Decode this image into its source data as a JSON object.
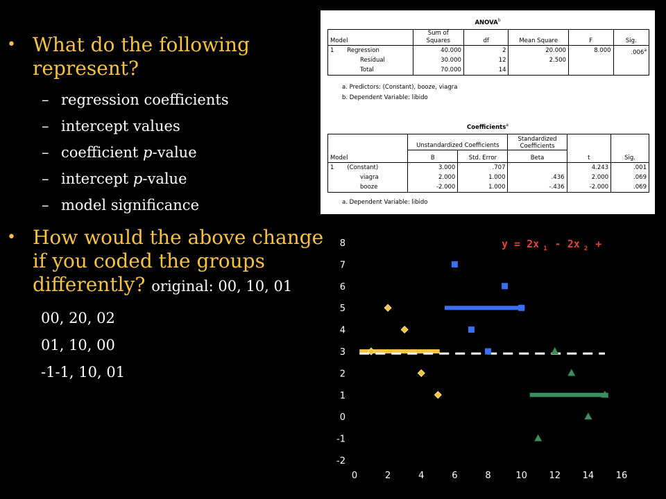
{
  "slide": {
    "bullet1": "What do the following represent?",
    "sub_items": [
      {
        "pre": "regression coefficients",
        "ital": "",
        "post": ""
      },
      {
        "pre": "intercept values",
        "ital": "",
        "post": ""
      },
      {
        "pre": "coefficient ",
        "ital": "p",
        "post": "-value"
      },
      {
        "pre": "intercept ",
        "ital": "p",
        "post": "-value"
      },
      {
        "pre": "model significance",
        "ital": "",
        "post": ""
      }
    ],
    "bullet2": "How would the above change if you coded the groups differently?",
    "bullet2_note": "original: 00, 10, 01",
    "codings": [
      "00, 20, 02",
      "01, 10, 00",
      "-1-1, 10, 01"
    ]
  },
  "anova": {
    "title": "ANOVA",
    "title_sup": "b",
    "headers": [
      "Model",
      "Sum of Squares",
      "df",
      "Mean Square",
      "F",
      "Sig."
    ],
    "model_num": "1",
    "rows": [
      {
        "label": "Regression",
        "ss": "40.000",
        "df": "2",
        "ms": "20.000",
        "f": "8.000",
        "sig": ".006",
        "sig_sup": "a"
      },
      {
        "label": "Residual",
        "ss": "30.000",
        "df": "12",
        "ms": "2.500",
        "f": "",
        "sig": "",
        "sig_sup": ""
      },
      {
        "label": "Total",
        "ss": "70.000",
        "df": "14",
        "ms": "",
        "f": "",
        "sig": "",
        "sig_sup": ""
      }
    ],
    "notes": [
      "a. Predictors: (Constant), booze, viagra",
      "b. Dependent Variable: libido"
    ]
  },
  "coefficients": {
    "title": "Coefficients",
    "title_sup": "a",
    "group_unstd": "Unstandardized Coefficients",
    "group_std": "Standardized Coefficients",
    "headers": [
      "Model",
      "B",
      "Std. Error",
      "Beta",
      "t",
      "Sig."
    ],
    "model_num": "1",
    "rows": [
      {
        "label": "(Constant)",
        "b": "3.000",
        "se": ".707",
        "beta": "",
        "t": "4.243",
        "sig": ".001"
      },
      {
        "label": "viagra",
        "b": "2.000",
        "se": "1.000",
        "beta": ".436",
        "t": "2.000",
        "sig": ".069"
      },
      {
        "label": "booze",
        "b": "-2.000",
        "se": "1.000",
        "beta": "-.436",
        "t": "-2.000",
        "sig": ".069"
      }
    ],
    "notes": [
      "a. Dependent Variable: libido"
    ]
  },
  "chart_data": {
    "type": "scatter",
    "xlim": [
      0,
      16
    ],
    "ylim": [
      -2,
      8
    ],
    "x_ticks": [
      0,
      2,
      4,
      6,
      8,
      10,
      12,
      14,
      16
    ],
    "y_ticks": [
      8,
      7,
      6,
      5,
      4,
      3,
      2,
      1,
      0,
      -1,
      -2
    ],
    "annotation": {
      "a": "y = 2x",
      "s1": "1",
      "b": " - 2x",
      "s2": "2",
      "c": " +"
    },
    "series": [
      {
        "marker": "diamond",
        "color": "#f5c242",
        "points": [
          [
            1,
            3
          ],
          [
            2,
            5
          ],
          [
            3,
            4
          ],
          [
            4,
            2
          ],
          [
            5,
            1
          ]
        ],
        "mean": {
          "y": 3,
          "x_from": 0.3,
          "x_to": 5.1
        }
      },
      {
        "marker": "square",
        "color": "#3a6ff0",
        "points": [
          [
            6,
            7
          ],
          [
            7,
            4
          ],
          [
            8,
            3
          ],
          [
            9,
            6
          ],
          [
            10,
            5
          ]
        ],
        "mean": {
          "y": 5,
          "x_from": 5.4,
          "x_to": 10.2
        }
      },
      {
        "marker": "triangle",
        "color": "#3a8f5f",
        "points": [
          [
            11,
            -1
          ],
          [
            12,
            3
          ],
          [
            13,
            2
          ],
          [
            14,
            0
          ],
          [
            15,
            1
          ]
        ],
        "mean": {
          "y": 1,
          "x_from": 10.5,
          "x_to": 15.2
        }
      }
    ],
    "grand_mean": {
      "y": 2.9,
      "x_from": 0.3,
      "x_to": 15.0,
      "color": "#ffffff",
      "style": "dashed"
    }
  }
}
